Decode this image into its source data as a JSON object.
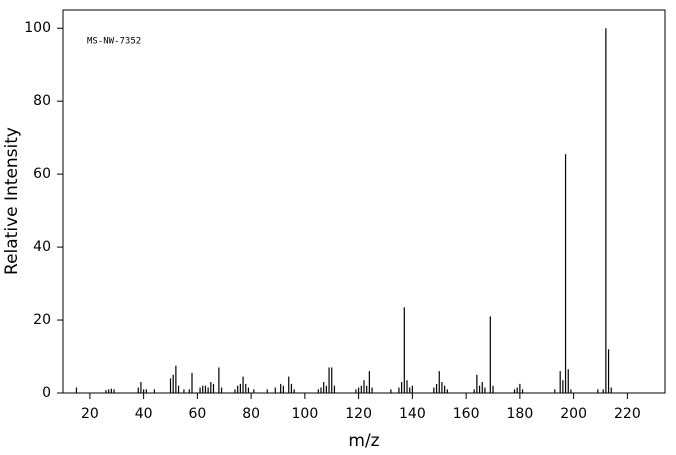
{
  "chart_data": {
    "type": "stem",
    "annotation": "MS-NW-7352",
    "xlabel": "m/z",
    "ylabel": "Relative Intensity",
    "color": "#000000",
    "x": [
      15,
      26,
      27,
      28,
      29,
      38,
      39,
      40,
      41,
      44,
      50,
      51,
      52,
      53,
      55,
      57,
      58,
      61,
      62,
      63,
      64,
      65,
      66,
      68,
      69,
      74,
      75,
      76,
      77,
      78,
      79,
      81,
      86,
      89,
      91,
      92,
      94,
      95,
      96,
      105,
      106,
      107,
      108,
      109,
      110,
      111,
      119,
      120,
      121,
      122,
      123,
      124,
      125,
      132,
      135,
      136,
      137,
      138,
      139,
      140,
      148,
      149,
      150,
      151,
      152,
      153,
      163,
      164,
      165,
      166,
      167,
      169,
      170,
      178,
      179,
      180,
      181,
      193,
      195,
      196,
      197,
      198,
      199,
      209,
      211,
      212,
      213,
      214
    ],
    "values": [
      1.5,
      0.8,
      1,
      1.2,
      1,
      1.5,
      3,
      1,
      1,
      1,
      4,
      5,
      7.5,
      2,
      1,
      1,
      5.5,
      1.5,
      2,
      2,
      1.5,
      3,
      2.5,
      7,
      1.5,
      1,
      2,
      2.5,
      4.5,
      2.5,
      1.5,
      1,
      1,
      1.5,
      2.5,
      2,
      4.5,
      2.5,
      1,
      1,
      1.5,
      3,
      2,
      7,
      7,
      2,
      1,
      1.5,
      2,
      3.5,
      2,
      6,
      1.5,
      1,
      1.5,
      3,
      23.5,
      3.5,
      1.5,
      2,
      1.5,
      2.5,
      6,
      3,
      2,
      1,
      1,
      5,
      2,
      3,
      1.5,
      21,
      2,
      1,
      1.5,
      2.5,
      1,
      1,
      6,
      3.5,
      65.5,
      6.5,
      1,
      1,
      1,
      100,
      12,
      1.5
    ],
    "xlim": [
      10,
      234
    ],
    "ylim": [
      0,
      105
    ],
    "xticks": [
      20,
      40,
      60,
      80,
      100,
      120,
      140,
      160,
      180,
      200,
      220
    ],
    "yticks": [
      0,
      20,
      40,
      60,
      80,
      100
    ]
  }
}
